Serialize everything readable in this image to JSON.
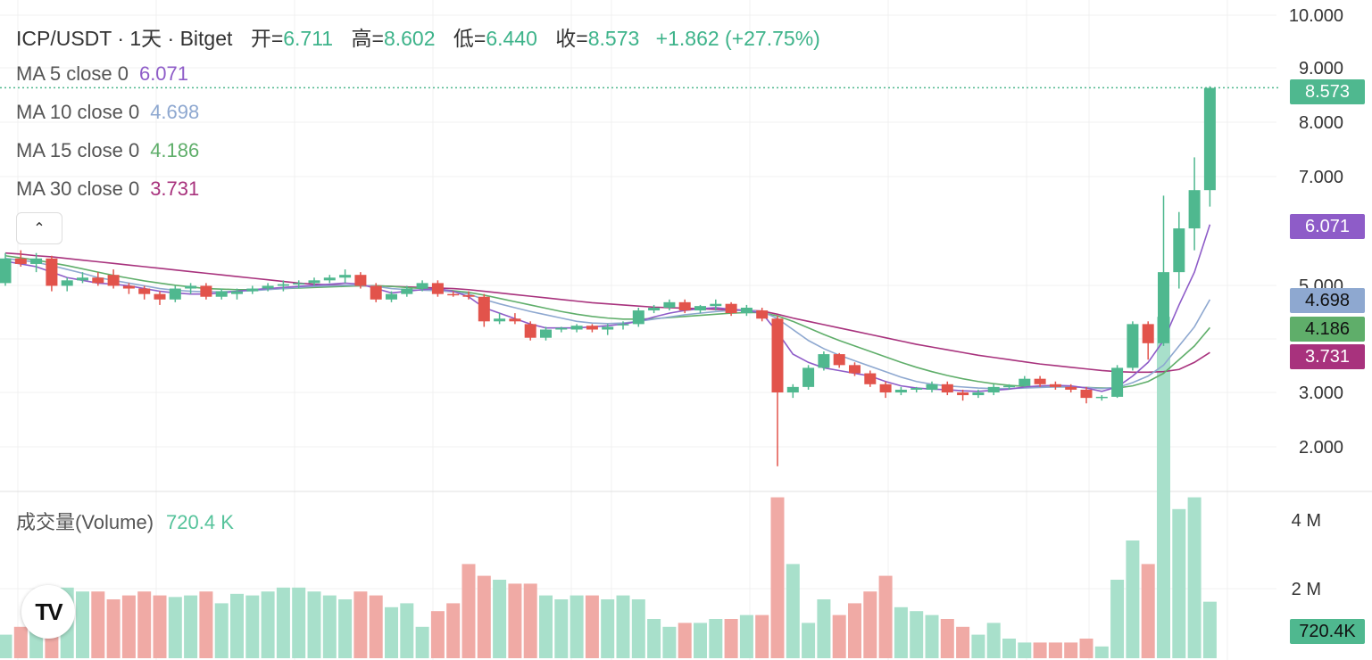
{
  "header": {
    "symbol": "ICP/USDT · 1天 · Bitget",
    "open_label": "开=",
    "open": "6.711",
    "high_label": "高=",
    "high": "8.602",
    "low_label": "低=",
    "low": "6.440",
    "close_label": "收=",
    "close": "8.573",
    "change": "+1.862 (+27.75%)"
  },
  "indicators": [
    {
      "label": "MA 5 close 0",
      "value": "6.071",
      "color": "#8e5cc8"
    },
    {
      "label": "MA 10 close 0",
      "value": "4.698",
      "color": "#8ea8d0"
    },
    {
      "label": "MA 15 close 0",
      "value": "4.186",
      "color": "#5fae6a"
    },
    {
      "label": "MA 30 close 0",
      "value": "3.731",
      "color": "#a8327d"
    }
  ],
  "volume_legend": {
    "label": "成交量(Volume)",
    "value": "720.4 K"
  },
  "colors": {
    "up": "#4fb88f",
    "down": "#e2534b",
    "vol_up": "#a8e0cb",
    "vol_down": "#f0aaa5",
    "grid": "#f0f0f0",
    "axis_text": "#333333"
  },
  "chart_data": {
    "type": "candlestick",
    "price_axis": {
      "ticks": [
        "10.000",
        "9.000",
        "8.000",
        "7.000",
        "5.000",
        "3.000",
        "2.000"
      ],
      "ylim": [
        1.5,
        10.0
      ]
    },
    "volume_axis": {
      "ticks": [
        "4 M",
        "2 M"
      ]
    },
    "last_price": "8.573",
    "ma_tags": [
      "6.071",
      "4.698",
      "4.186",
      "3.731"
    ],
    "volume_tag": "720.4K",
    "candles": [
      [
        5.0,
        5.55,
        4.95,
        5.45
      ],
      [
        5.45,
        5.6,
        5.3,
        5.35
      ],
      [
        5.35,
        5.55,
        5.2,
        5.45
      ],
      [
        5.45,
        5.5,
        4.85,
        4.95
      ],
      [
        4.95,
        5.1,
        4.85,
        5.05
      ],
      [
        5.05,
        5.2,
        5.0,
        5.1
      ],
      [
        5.1,
        5.2,
        4.95,
        5.0
      ],
      [
        5.15,
        5.25,
        4.9,
        4.95
      ],
      [
        4.95,
        5.0,
        4.8,
        4.9
      ],
      [
        4.9,
        4.95,
        4.7,
        4.8
      ],
      [
        4.8,
        4.85,
        4.6,
        4.7
      ],
      [
        4.7,
        4.95,
        4.65,
        4.9
      ],
      [
        4.9,
        5.0,
        4.8,
        4.95
      ],
      [
        4.95,
        5.0,
        4.7,
        4.75
      ],
      [
        4.75,
        4.9,
        4.7,
        4.85
      ],
      [
        4.8,
        4.9,
        4.7,
        4.85
      ],
      [
        4.85,
        4.95,
        4.8,
        4.9
      ],
      [
        4.9,
        5.0,
        4.85,
        4.95
      ],
      [
        4.95,
        5.05,
        4.85,
        4.98
      ],
      [
        4.98,
        5.05,
        4.9,
        5.0
      ],
      [
        5.0,
        5.1,
        4.95,
        5.05
      ],
      [
        5.05,
        5.15,
        5.0,
        5.1
      ],
      [
        5.1,
        5.25,
        5.0,
        5.15
      ],
      [
        5.15,
        5.2,
        4.9,
        4.95
      ],
      [
        4.95,
        5.0,
        4.65,
        4.7
      ],
      [
        4.7,
        4.85,
        4.65,
        4.8
      ],
      [
        4.8,
        4.95,
        4.75,
        4.9
      ],
      [
        4.9,
        5.05,
        4.85,
        5.0
      ],
      [
        5.0,
        5.05,
        4.75,
        4.8
      ],
      [
        4.8,
        4.85,
        4.75,
        4.78
      ],
      [
        4.78,
        4.85,
        4.7,
        4.75
      ],
      [
        4.75,
        4.8,
        4.2,
        4.3
      ],
      [
        4.3,
        4.45,
        4.25,
        4.35
      ],
      [
        4.35,
        4.45,
        4.25,
        4.3
      ],
      [
        4.25,
        4.3,
        3.95,
        4.0
      ],
      [
        4.0,
        4.2,
        3.95,
        4.15
      ],
      [
        4.15,
        4.2,
        4.1,
        4.18
      ],
      [
        4.15,
        4.25,
        4.1,
        4.22
      ],
      [
        4.22,
        4.25,
        4.1,
        4.15
      ],
      [
        4.15,
        4.25,
        4.05,
        4.2
      ],
      [
        4.25,
        4.3,
        4.15,
        4.25
      ],
      [
        4.25,
        4.55,
        4.2,
        4.5
      ],
      [
        4.5,
        4.6,
        4.45,
        4.55
      ],
      [
        4.55,
        4.7,
        4.5,
        4.65
      ],
      [
        4.65,
        4.7,
        4.45,
        4.5
      ],
      [
        4.5,
        4.6,
        4.45,
        4.58
      ],
      [
        4.58,
        4.7,
        4.5,
        4.62
      ],
      [
        4.62,
        4.65,
        4.4,
        4.45
      ],
      [
        4.45,
        4.6,
        4.4,
        4.55
      ],
      [
        4.5,
        4.55,
        4.3,
        4.35
      ],
      [
        4.35,
        4.4,
        1.65,
        3.0
      ],
      [
        3.0,
        3.15,
        2.9,
        3.1
      ],
      [
        3.1,
        3.5,
        3.05,
        3.45
      ],
      [
        3.45,
        3.75,
        3.4,
        3.7
      ],
      [
        3.7,
        3.72,
        3.45,
        3.5
      ],
      [
        3.5,
        3.55,
        3.3,
        3.35
      ],
      [
        3.35,
        3.4,
        3.1,
        3.15
      ],
      [
        3.15,
        3.2,
        2.9,
        3.0
      ],
      [
        3.0,
        3.1,
        2.95,
        3.05
      ],
      [
        3.05,
        3.1,
        3.0,
        3.08
      ],
      [
        3.05,
        3.2,
        3.0,
        3.15
      ],
      [
        3.15,
        3.2,
        2.95,
        3.0
      ],
      [
        3.0,
        3.05,
        2.85,
        2.95
      ],
      [
        2.95,
        3.05,
        2.9,
        3.0
      ],
      [
        3.0,
        3.15,
        2.95,
        3.1
      ],
      [
        3.1,
        3.15,
        3.05,
        3.12
      ],
      [
        3.12,
        3.3,
        3.1,
        3.25
      ],
      [
        3.25,
        3.3,
        3.1,
        3.15
      ],
      [
        3.15,
        3.2,
        3.05,
        3.1
      ],
      [
        3.1,
        3.15,
        3.0,
        3.05
      ],
      [
        3.05,
        3.1,
        2.8,
        2.9
      ],
      [
        2.9,
        2.95,
        2.85,
        2.92
      ],
      [
        2.92,
        3.5,
        2.9,
        3.45
      ],
      [
        3.45,
        4.3,
        3.4,
        4.25
      ],
      [
        4.25,
        4.3,
        3.6,
        3.9
      ],
      [
        3.9,
        6.6,
        3.85,
        5.2
      ],
      [
        5.2,
        6.3,
        4.9,
        6.0
      ],
      [
        6.0,
        7.3,
        5.6,
        6.7
      ],
      [
        6.7,
        8.6,
        6.4,
        8.57
      ]
    ],
    "volumes_m": [
      0.3,
      0.4,
      0.65,
      0.45,
      0.9,
      0.85,
      0.85,
      0.75,
      0.8,
      0.85,
      0.8,
      0.78,
      0.8,
      0.85,
      0.7,
      0.82,
      0.8,
      0.85,
      0.9,
      0.9,
      0.85,
      0.8,
      0.75,
      0.85,
      0.8,
      0.65,
      0.7,
      0.4,
      0.6,
      0.7,
      1.2,
      1.05,
      1.0,
      0.95,
      0.95,
      0.8,
      0.75,
      0.8,
      0.8,
      0.75,
      0.8,
      0.75,
      0.5,
      0.4,
      0.45,
      0.45,
      0.5,
      0.5,
      0.55,
      0.55,
      2.05,
      1.2,
      0.45,
      0.75,
      0.55,
      0.7,
      0.85,
      1.05,
      0.65,
      0.6,
      0.55,
      0.5,
      0.4,
      0.3,
      0.45,
      0.25,
      0.2,
      0.2,
      0.2,
      0.2,
      0.25,
      0.15,
      1.0,
      1.5,
      1.2,
      4.35,
      1.9,
      2.05,
      0.72
    ],
    "ma5": [
      5.4,
      5.35,
      5.3,
      5.2,
      5.1,
      5.05,
      5.0,
      4.98,
      4.95,
      4.9,
      4.85,
      4.82,
      4.8,
      4.8,
      4.82,
      4.85,
      4.88,
      4.9,
      4.92,
      4.94,
      4.96,
      4.98,
      5.0,
      4.98,
      4.9,
      4.82,
      4.85,
      4.88,
      4.9,
      4.85,
      4.75,
      4.55,
      4.45,
      4.35,
      4.25,
      4.18,
      4.18,
      4.18,
      4.2,
      4.22,
      4.25,
      4.3,
      4.38,
      4.45,
      4.5,
      4.53,
      4.55,
      4.52,
      4.5,
      4.45,
      4.1,
      3.7,
      3.55,
      3.45,
      3.4,
      3.35,
      3.3,
      3.2,
      3.12,
      3.08,
      3.06,
      3.05,
      3.03,
      3.02,
      3.04,
      3.06,
      3.1,
      3.12,
      3.13,
      3.12,
      3.08,
      3.02,
      3.1,
      3.3,
      3.55,
      3.95,
      4.6,
      5.2,
      6.07
    ],
    "ma10": [
      5.45,
      5.42,
      5.38,
      5.32,
      5.25,
      5.18,
      5.1,
      5.05,
      5.0,
      4.95,
      4.9,
      4.87,
      4.85,
      4.84,
      4.84,
      4.85,
      4.86,
      4.88,
      4.9,
      4.92,
      4.94,
      4.95,
      4.96,
      4.96,
      4.94,
      4.9,
      4.88,
      4.87,
      4.86,
      4.84,
      4.8,
      4.7,
      4.62,
      4.55,
      4.48,
      4.42,
      4.36,
      4.3,
      4.27,
      4.26,
      4.27,
      4.3,
      4.34,
      4.38,
      4.42,
      4.45,
      4.48,
      4.5,
      4.5,
      4.48,
      4.35,
      4.15,
      3.95,
      3.8,
      3.68,
      3.58,
      3.48,
      3.38,
      3.28,
      3.2,
      3.15,
      3.12,
      3.1,
      3.08,
      3.07,
      3.07,
      3.08,
      3.09,
      3.1,
      3.1,
      3.09,
      3.07,
      3.09,
      3.18,
      3.3,
      3.5,
      3.85,
      4.2,
      4.698
    ],
    "ma15": [
      5.5,
      5.46,
      5.42,
      5.37,
      5.32,
      5.26,
      5.2,
      5.14,
      5.09,
      5.04,
      5.0,
      4.96,
      4.93,
      4.9,
      4.89,
      4.88,
      4.88,
      4.89,
      4.9,
      4.91,
      4.92,
      4.93,
      4.94,
      4.95,
      4.95,
      4.94,
      4.92,
      4.9,
      4.88,
      4.86,
      4.83,
      4.78,
      4.72,
      4.66,
      4.6,
      4.54,
      4.48,
      4.43,
      4.39,
      4.36,
      4.34,
      4.34,
      4.35,
      4.37,
      4.39,
      4.41,
      4.43,
      4.45,
      4.46,
      4.46,
      4.4,
      4.3,
      4.18,
      4.06,
      3.95,
      3.85,
      3.75,
      3.65,
      3.55,
      3.46,
      3.38,
      3.31,
      3.25,
      3.2,
      3.16,
      3.13,
      3.11,
      3.1,
      3.1,
      3.1,
      3.09,
      3.08,
      3.08,
      3.12,
      3.2,
      3.35,
      3.6,
      3.85,
      4.186
    ],
    "ma30": [
      5.55,
      5.53,
      5.5,
      5.48,
      5.45,
      5.42,
      5.39,
      5.36,
      5.33,
      5.3,
      5.27,
      5.24,
      5.21,
      5.18,
      5.15,
      5.12,
      5.09,
      5.06,
      5.03,
      5.0,
      4.98,
      4.97,
      4.96,
      4.95,
      4.95,
      4.94,
      4.93,
      4.92,
      4.91,
      4.9,
      4.88,
      4.85,
      4.82,
      4.79,
      4.76,
      4.73,
      4.7,
      4.67,
      4.64,
      4.62,
      4.6,
      4.58,
      4.56,
      4.55,
      4.54,
      4.53,
      4.52,
      4.51,
      4.5,
      4.49,
      4.43,
      4.36,
      4.3,
      4.24,
      4.18,
      4.12,
      4.06,
      4.0,
      3.94,
      3.88,
      3.83,
      3.78,
      3.73,
      3.68,
      3.64,
      3.6,
      3.56,
      3.52,
      3.49,
      3.46,
      3.43,
      3.4,
      3.38,
      3.37,
      3.37,
      3.38,
      3.42,
      3.55,
      3.731
    ]
  }
}
